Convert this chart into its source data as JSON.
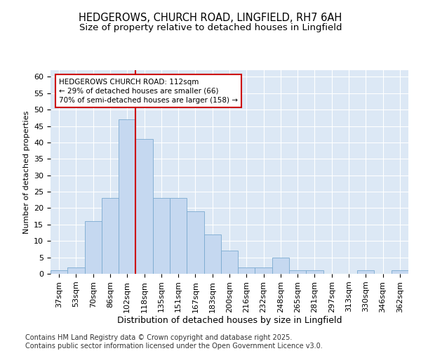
{
  "title1": "HEDGEROWS, CHURCH ROAD, LINGFIELD, RH7 6AH",
  "title2": "Size of property relative to detached houses in Lingfield",
  "xlabel": "Distribution of detached houses by size in Lingfield",
  "ylabel": "Number of detached properties",
  "categories": [
    "37sqm",
    "53sqm",
    "70sqm",
    "86sqm",
    "102sqm",
    "118sqm",
    "135sqm",
    "151sqm",
    "167sqm",
    "183sqm",
    "200sqm",
    "216sqm",
    "232sqm",
    "248sqm",
    "265sqm",
    "281sqm",
    "297sqm",
    "313sqm",
    "330sqm",
    "346sqm",
    "362sqm"
  ],
  "values": [
    1,
    2,
    16,
    23,
    47,
    41,
    23,
    23,
    19,
    12,
    7,
    2,
    2,
    5,
    1,
    1,
    0,
    0,
    1,
    0,
    1
  ],
  "bar_color": "#c5d8f0",
  "bar_edge_color": "#7aaad0",
  "vline_x": 4.5,
  "vline_color": "#cc0000",
  "annotation_text": "HEDGEROWS CHURCH ROAD: 112sqm\n← 29% of detached houses are smaller (66)\n70% of semi-detached houses are larger (158) →",
  "annotation_box_color": "#ffffff",
  "annotation_box_edge_color": "#cc0000",
  "ylim": [
    0,
    62
  ],
  "yticks": [
    0,
    5,
    10,
    15,
    20,
    25,
    30,
    35,
    40,
    45,
    50,
    55,
    60
  ],
  "bg_color": "#dce8f5",
  "footer": "Contains HM Land Registry data © Crown copyright and database right 2025.\nContains public sector information licensed under the Open Government Licence v3.0.",
  "title_fontsize": 10.5,
  "subtitle_fontsize": 9.5,
  "xlabel_fontsize": 9,
  "ylabel_fontsize": 8,
  "tick_fontsize": 8,
  "annotation_fontsize": 7.5,
  "footer_fontsize": 7
}
